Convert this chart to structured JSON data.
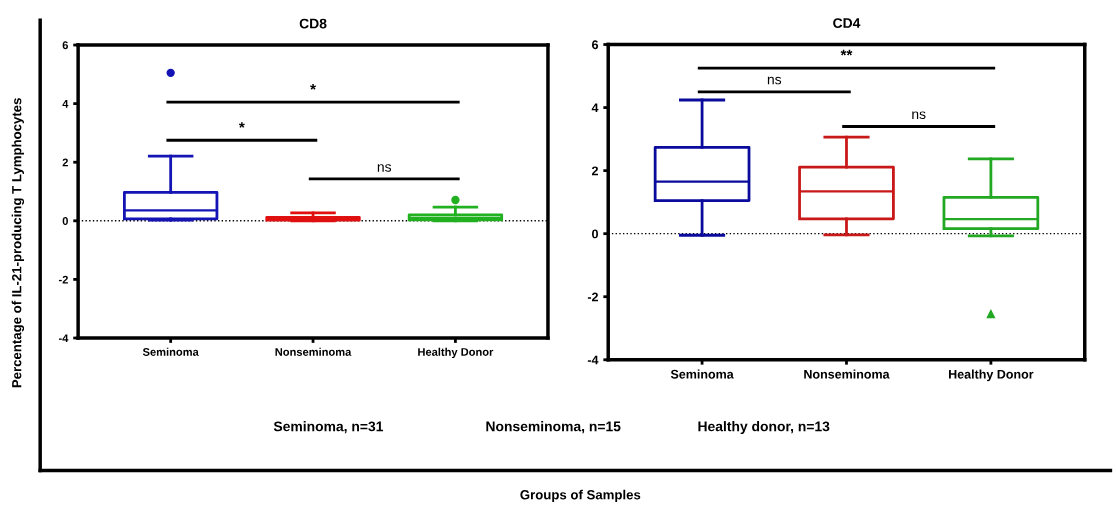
{
  "chart_data": [
    {
      "type": "box",
      "title": "CD8",
      "ylabel": "Percentage of IL-21-producing T Lymphocytes",
      "xlabel": "Groups of Samples",
      "categories": [
        "Seminoma",
        "Nonseminoma",
        "Healthy Donor"
      ],
      "colors": [
        "#1414b4",
        "#e01010",
        "#20b020"
      ],
      "boxes": [
        {
          "low": 0.02,
          "q1": 0.07,
          "median": 0.36,
          "q3": 0.97,
          "high": 2.21,
          "outliers": [
            5.05
          ]
        },
        {
          "low": 0.0,
          "q1": 0.02,
          "median": 0.05,
          "q3": 0.12,
          "high": 0.27
        },
        {
          "low": 0.0,
          "q1": 0.03,
          "median": 0.1,
          "q3": 0.2,
          "high": 0.47,
          "outliers": [
            0.71
          ]
        }
      ],
      "marker": "circle",
      "ylim": [
        -4,
        6
      ],
      "yticks": [
        -4,
        -2,
        0,
        2,
        4,
        6
      ],
      "grid": false,
      "ref_lines": [
        {
          "axis": "y",
          "value": 0,
          "line_style": "dotted",
          "color": "#000000"
        }
      ],
      "annotations": [
        "*",
        "*",
        "ns",
        "Seminoma, n=31",
        "Nonseminoma, n=15",
        "Healthy donor, n=13"
      ]
    },
    {
      "type": "box",
      "title": "CD4",
      "categories": [
        "Seminoma",
        "Nonseminoma",
        "Healthy Donor"
      ],
      "colors": [
        "#0a0a9c",
        "#c81818",
        "#22a822"
      ],
      "boxes": [
        {
          "low": -0.05,
          "q1": 1.05,
          "median": 1.65,
          "q3": 2.74,
          "high": 4.24
        },
        {
          "low": -0.04,
          "q1": 0.47,
          "median": 1.34,
          "q3": 2.11,
          "high": 3.06
        },
        {
          "low": -0.07,
          "q1": 0.16,
          "median": 0.46,
          "q3": 1.15,
          "high": 2.37,
          "outliers": [
            -2.55
          ]
        }
      ],
      "marker": "triangle",
      "ylim": [
        -4,
        6
      ],
      "yticks": [
        -4,
        -2,
        0,
        2,
        4,
        6
      ],
      "grid": false,
      "ref_lines": [
        {
          "axis": "y",
          "value": 0,
          "line_style": "dotted",
          "color": "#000000"
        }
      ],
      "annotations": [
        "**",
        "ns",
        "ns"
      ]
    }
  ]
}
